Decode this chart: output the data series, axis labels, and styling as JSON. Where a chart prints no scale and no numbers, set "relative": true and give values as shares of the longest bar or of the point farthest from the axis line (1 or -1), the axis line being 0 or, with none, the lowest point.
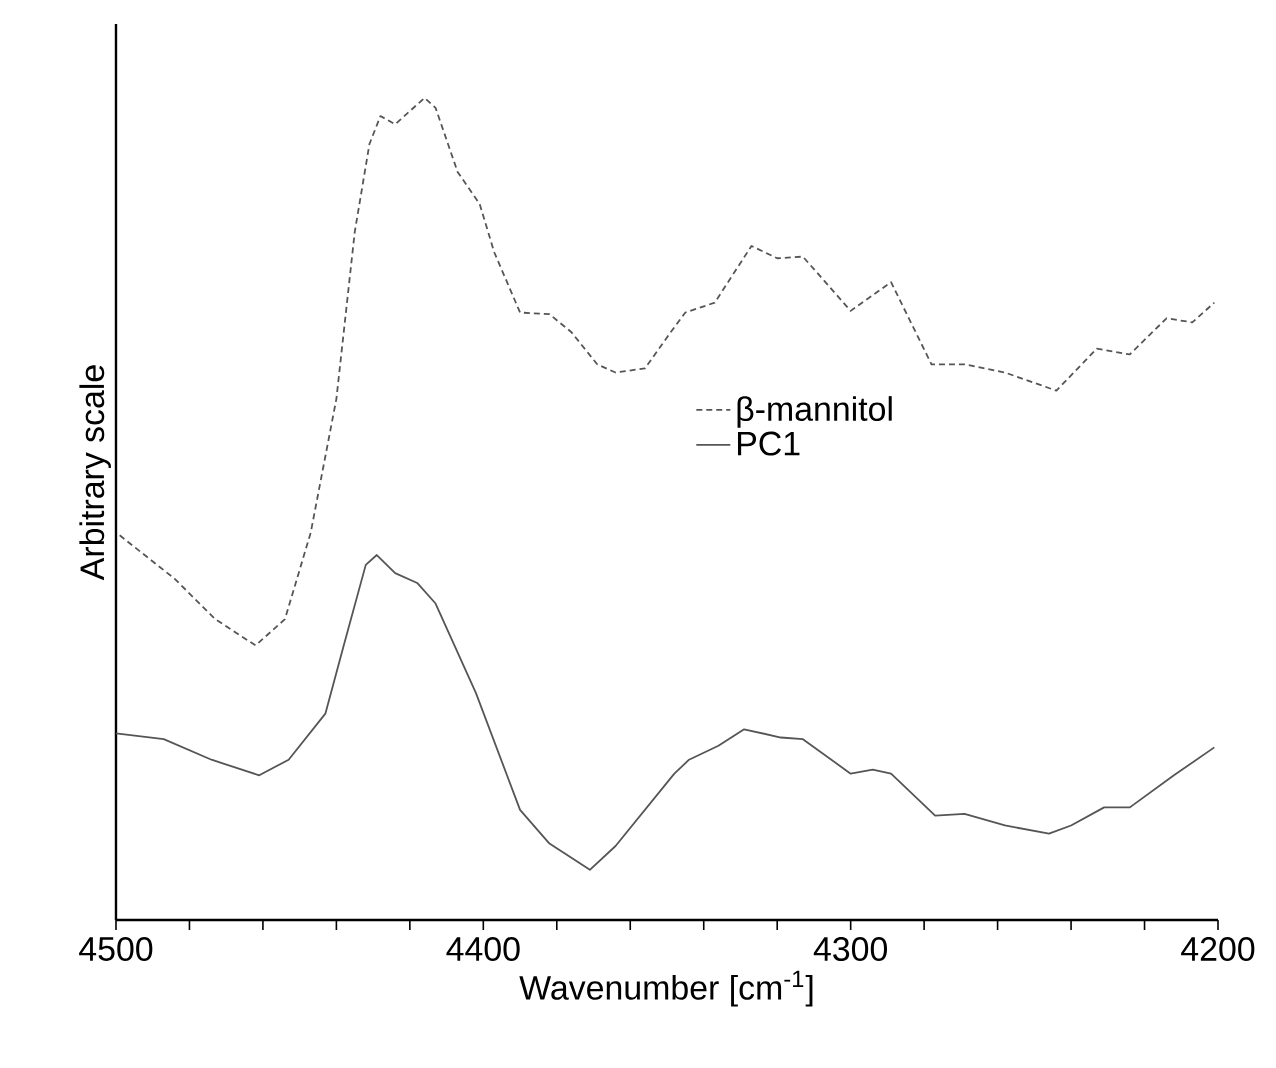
{
  "chart_data": {
    "type": "line",
    "relative": true,
    "xlabel": "Wavenumber [cm$^{-1}$]",
    "ylabel": "Arbitrary scale",
    "xlim": [
      4500,
      4200
    ],
    "xticks": [
      4500,
      {
        "value": 4480,
        "label": null
      },
      {
        "value": 4460,
        "label": null
      },
      {
        "value": 4440,
        "label": null
      },
      {
        "value": 4420,
        "label": null
      },
      4400,
      {
        "value": 4380,
        "label": null
      },
      {
        "value": 4360,
        "label": null
      },
      {
        "value": 4340,
        "label": null
      },
      {
        "value": 4320,
        "label": null
      },
      4300,
      {
        "value": 4280,
        "label": null
      },
      {
        "value": 4260,
        "label": null
      },
      {
        "value": 4240,
        "label": null
      },
      {
        "value": 4220,
        "label": null
      },
      4200
    ],
    "legend": "right",
    "grid": false,
    "marker": "none",
    "series": [
      {
        "name": "β-mannitol",
        "color": "#555555",
        "line_style": "dashed",
        "x": [
          4499,
          4484,
          4473,
          4462,
          4454,
          4447,
          4440,
          4435,
          4431,
          4428,
          4424,
          4416,
          4413,
          4407,
          4401,
          4397,
          4390,
          4382,
          4376,
          4369,
          4364,
          4356,
          4349,
          4345,
          4337,
          4327,
          4320,
          4313,
          4300,
          4289,
          4278,
          4269,
          4258,
          4244,
          4233,
          4224,
          4214,
          4207,
          4201
        ],
        "values": [
          0.468,
          0.415,
          0.366,
          0.334,
          0.366,
          0.471,
          0.634,
          0.837,
          0.944,
          0.978,
          0.968,
          1.0,
          0.988,
          0.91,
          0.871,
          0.812,
          0.739,
          0.737,
          0.715,
          0.676,
          0.666,
          0.671,
          0.715,
          0.739,
          0.751,
          0.82,
          0.805,
          0.807,
          0.741,
          0.776,
          0.676,
          0.676,
          0.666,
          0.644,
          0.695,
          0.688,
          0.732,
          0.727,
          0.751
        ]
      },
      {
        "name": "PC1",
        "color": "#555555",
        "line_style": "solid",
        "x": [
          4500,
          4487,
          4474,
          4461,
          4453,
          4443,
          4438,
          4432,
          4429,
          4424,
          4418,
          4413,
          4402,
          4390,
          4382,
          4371,
          4364,
          4348,
          4344,
          4336,
          4329,
          4319,
          4313,
          4300,
          4294,
          4289,
          4277,
          4269,
          4258,
          4246,
          4240,
          4231,
          4224,
          4212,
          4201
        ],
        "values": [
          0.227,
          0.22,
          0.195,
          0.176,
          0.195,
          0.251,
          0.334,
          0.432,
          0.444,
          0.422,
          0.41,
          0.385,
          0.276,
          0.134,
          0.093,
          0.061,
          0.09,
          0.178,
          0.195,
          0.212,
          0.232,
          0.222,
          0.22,
          0.178,
          0.183,
          0.178,
          0.127,
          0.129,
          0.115,
          0.105,
          0.115,
          0.137,
          0.137,
          0.176,
          0.21
        ]
      }
    ]
  }
}
